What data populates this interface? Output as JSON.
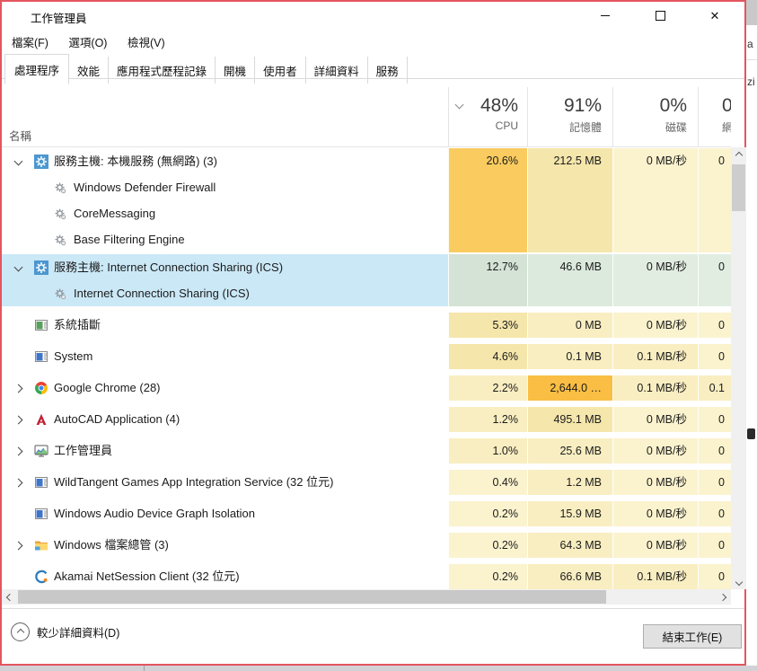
{
  "window": {
    "title": "工作管理員"
  },
  "menu": [
    "檔案(F)",
    "選項(O)",
    "檢視(V)"
  ],
  "tabs": [
    {
      "label": "處理程序",
      "active": true
    },
    {
      "label": "效能",
      "active": false
    },
    {
      "label": "應用程式歷程記錄",
      "active": false
    },
    {
      "label": "開機",
      "active": false
    },
    {
      "label": "使用者",
      "active": false
    },
    {
      "label": "詳細資料",
      "active": false
    },
    {
      "label": "服務",
      "active": false
    }
  ],
  "columns": {
    "name_label": "名稱",
    "cpu": {
      "usage": "48%",
      "label": "CPU"
    },
    "memory": {
      "usage": "91%",
      "label": "記憶體"
    },
    "disk": {
      "usage": "0%",
      "label": "磁碟"
    },
    "network": {
      "usage": "0",
      "label": "網"
    }
  },
  "rows": [
    {
      "kind": "group",
      "expanded": true,
      "selected": false,
      "icon": "service-gear-icon",
      "name": "服務主機: 本機服務 (無網路) (3)",
      "children": [
        "Windows Defender Firewall",
        "CoreMessaging",
        "Base Filtering Engine"
      ],
      "values": {
        "cpu": "20.6%",
        "mem": "212.5 MB",
        "disk": "0 MB/秒",
        "net": "0"
      },
      "heat": {
        "cpu": 3,
        "mem": 2,
        "disk": 0,
        "net": 0
      }
    },
    {
      "kind": "group",
      "expanded": true,
      "selected": true,
      "icon": "service-gear-icon",
      "name": "服務主機: Internet Connection Sharing (ICS)",
      "children": [
        "Internet Connection Sharing (ICS)"
      ],
      "values": {
        "cpu": "12.7%",
        "mem": "46.6 MB",
        "disk": "0 MB/秒",
        "net": "0"
      },
      "heat": {
        "cpu": 0,
        "mem": 0,
        "disk": 0,
        "net": 0
      }
    },
    {
      "kind": "single",
      "expanded": null,
      "selected": false,
      "icon": "system-interrupts-icon",
      "name": "系統插斷",
      "children": [],
      "values": {
        "cpu": "5.3%",
        "mem": "0 MB",
        "disk": "0 MB/秒",
        "net": "0"
      },
      "heat": {
        "cpu": 2,
        "mem": 1,
        "disk": 0,
        "net": 0
      }
    },
    {
      "kind": "single",
      "expanded": null,
      "selected": false,
      "icon": "system-icon",
      "name": "System",
      "children": [],
      "values": {
        "cpu": "4.6%",
        "mem": "0.1 MB",
        "disk": "0.1 MB/秒",
        "net": "0"
      },
      "heat": {
        "cpu": 2,
        "mem": 1,
        "disk": 1,
        "net": 0
      }
    },
    {
      "kind": "single",
      "expanded": false,
      "selected": false,
      "icon": "chrome-icon",
      "name": "Google Chrome (28)",
      "children": [],
      "values": {
        "cpu": "2.2%",
        "mem": "2,644.0 …",
        "disk": "0.1 MB/秒",
        "net": "0.1"
      },
      "heat": {
        "cpu": 1,
        "mem": 4,
        "disk": 1,
        "net": 1
      }
    },
    {
      "kind": "single",
      "expanded": false,
      "selected": false,
      "icon": "autocad-icon",
      "name": "AutoCAD Application (4)",
      "children": [],
      "values": {
        "cpu": "1.2%",
        "mem": "495.1 MB",
        "disk": "0 MB/秒",
        "net": "0"
      },
      "heat": {
        "cpu": 1,
        "mem": 2,
        "disk": 0,
        "net": 0
      }
    },
    {
      "kind": "single",
      "expanded": false,
      "selected": false,
      "icon": "task-manager-icon",
      "name": "工作管理員",
      "children": [],
      "values": {
        "cpu": "1.0%",
        "mem": "25.6 MB",
        "disk": "0 MB/秒",
        "net": "0"
      },
      "heat": {
        "cpu": 1,
        "mem": 1,
        "disk": 0,
        "net": 0
      }
    },
    {
      "kind": "single",
      "expanded": false,
      "selected": false,
      "icon": "app-window-icon",
      "name": "WildTangent Games App Integration Service (32 位元)",
      "children": [],
      "values": {
        "cpu": "0.4%",
        "mem": "1.2 MB",
        "disk": "0 MB/秒",
        "net": "0"
      },
      "heat": {
        "cpu": 0,
        "mem": 1,
        "disk": 0,
        "net": 0
      }
    },
    {
      "kind": "single",
      "expanded": null,
      "selected": false,
      "icon": "app-window-icon",
      "name": "Windows Audio Device Graph Isolation",
      "children": [],
      "values": {
        "cpu": "0.2%",
        "mem": "15.9 MB",
        "disk": "0 MB/秒",
        "net": "0"
      },
      "heat": {
        "cpu": 0,
        "mem": 1,
        "disk": 0,
        "net": 0
      }
    },
    {
      "kind": "single",
      "expanded": false,
      "selected": false,
      "icon": "folder-icon",
      "name": "Windows 檔案總管 (3)",
      "children": [],
      "values": {
        "cpu": "0.2%",
        "mem": "64.3 MB",
        "disk": "0 MB/秒",
        "net": "0"
      },
      "heat": {
        "cpu": 0,
        "mem": 1,
        "disk": 0,
        "net": 0
      }
    },
    {
      "kind": "single",
      "expanded": null,
      "selected": false,
      "icon": "akamai-icon",
      "name": "Akamai NetSession Client (32 位元)",
      "children": [],
      "values": {
        "cpu": "0.2%",
        "mem": "66.6 MB",
        "disk": "0.1 MB/秒",
        "net": "0"
      },
      "heat": {
        "cpu": 0,
        "mem": 1,
        "disk": 1,
        "net": 0
      }
    }
  ],
  "footer": {
    "less_details": "較少詳細資料(D)",
    "end_task": "結束工作(E)"
  },
  "colors": {
    "window_border": "#e4565e",
    "selection": "#cbe8f7",
    "heat_levels": [
      "#FBF3CE",
      "#F9EEC2",
      "#F5E6AC",
      "#FACC5F",
      "#FBBE45"
    ],
    "selected_heat": {
      "cpu": "#D5E2D6",
      "mem": "#DBEADD",
      "disk": "#E0EDE0",
      "net": "#E0EDE0"
    }
  },
  "background_edge": {
    "fragment_top": "a",
    "fragment_mid": "zi"
  }
}
